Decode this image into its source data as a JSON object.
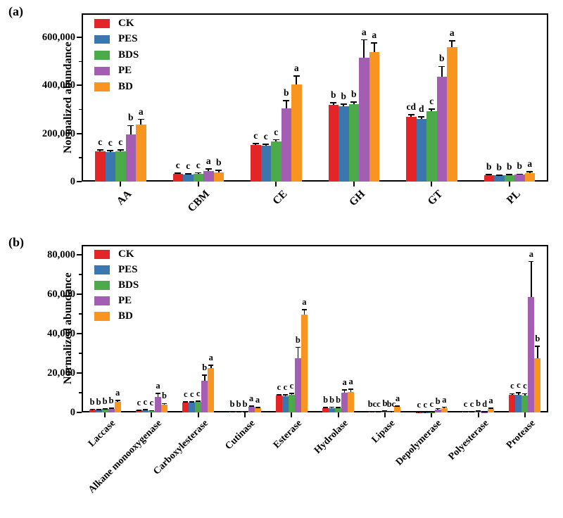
{
  "figure": {
    "background": "#ffffff"
  },
  "series_colors": {
    "CK": "#e42527",
    "PES": "#3b76af",
    "BDS": "#4caa4b",
    "PE": "#a35db3",
    "BD": "#f89521"
  },
  "chart_data": [
    {
      "type": "bar",
      "panel_label": "(a)",
      "title": "",
      "xlabel": "",
      "ylabel": "Normalized abundance",
      "grid": false,
      "legend_position": "inside top-left",
      "legend": [
        "CK",
        "PES",
        "BDS",
        "PE",
        "BD"
      ],
      "categories": [
        "AA",
        "CBM",
        "CE",
        "GH",
        "GT",
        "PL"
      ],
      "ylim": [
        0,
        700000
      ],
      "yticks": [
        0,
        200000,
        400000,
        600000
      ],
      "ytick_labels": [
        "0",
        "200,000",
        "400,000",
        "600,000"
      ],
      "minor_yticks": [
        100000,
        300000,
        500000
      ],
      "series": [
        {
          "name": "CK",
          "color": "#e42527",
          "values": [
            125000,
            31000,
            152000,
            320000,
            270000,
            27000
          ],
          "errors": [
            6000,
            3000,
            7000,
            9000,
            8000,
            2500
          ],
          "sig_letters": [
            "c",
            "c",
            "c",
            "b",
            "cd",
            "b"
          ]
        },
        {
          "name": "PES",
          "color": "#3b76af",
          "values": [
            124000,
            30000,
            148000,
            314000,
            262000,
            25000
          ],
          "errors": [
            6000,
            3000,
            8000,
            8000,
            7000,
            2500
          ],
          "sig_letters": [
            "c",
            "c",
            "c",
            "b",
            "d",
            "b"
          ]
        },
        {
          "name": "BDS",
          "color": "#4caa4b",
          "values": [
            125000,
            33000,
            166000,
            323000,
            292000,
            27000
          ],
          "errors": [
            6000,
            3500,
            8000,
            9000,
            9000,
            2500
          ],
          "sig_letters": [
            "c",
            "c",
            "c",
            "b",
            "c",
            "b"
          ]
        },
        {
          "name": "PE",
          "color": "#a35db3",
          "values": [
            195000,
            45000,
            305000,
            515000,
            437000,
            28000
          ],
          "errors": [
            38000,
            8000,
            32000,
            75000,
            42000,
            3000
          ],
          "sig_letters": [
            "b",
            "a",
            "b",
            "a",
            "b",
            "b"
          ]
        },
        {
          "name": "BD",
          "color": "#f89521",
          "values": [
            237000,
            39000,
            404000,
            540000,
            560000,
            36000
          ],
          "errors": [
            22000,
            7000,
            35000,
            36000,
            26000,
            4000
          ],
          "sig_letters": [
            "a",
            "b",
            "a",
            "a",
            "a",
            "a"
          ]
        }
      ]
    },
    {
      "type": "bar",
      "panel_label": "(b)",
      "title": "",
      "xlabel": "",
      "ylabel": "Normalized abundance",
      "grid": false,
      "legend_position": "inside top-left",
      "legend": [
        "CK",
        "PES",
        "BDS",
        "PE",
        "BD"
      ],
      "categories": [
        "Laccase",
        "Alkane monooxygenase",
        "Carboxylesterase",
        "Cutinase",
        "Esterase",
        "Hydrolase",
        "Lipase",
        "Depolymerase",
        "Polyesterase",
        "Protease"
      ],
      "ylim": [
        0,
        85000
      ],
      "yticks": [
        0,
        20000,
        40000,
        60000,
        80000
      ],
      "ytick_labels": [
        "0",
        "20,000",
        "40,000",
        "60,000",
        "80,000"
      ],
      "minor_yticks": [
        10000,
        30000,
        50000,
        70000
      ],
      "series": [
        {
          "name": "CK",
          "color": "#e42527",
          "values": [
            1400,
            900,
            4900,
            200,
            8400,
            2200,
            300,
            120,
            220,
            8800
          ],
          "errors": [
            180,
            150,
            400,
            60,
            600,
            350,
            90,
            40,
            60,
            700
          ],
          "sig_letters": [
            "b",
            "c",
            "c",
            "b",
            "c",
            "b",
            "bc",
            "c",
            "c",
            "c"
          ]
        },
        {
          "name": "PES",
          "color": "#3b76af",
          "values": [
            1300,
            1100,
            5000,
            200,
            8300,
            2300,
            260,
            120,
            260,
            9100
          ],
          "errors": [
            160,
            220,
            420,
            60,
            550,
            350,
            70,
            40,
            70,
            800
          ],
          "sig_letters": [
            "b",
            "c",
            "c",
            "b",
            "c",
            "b",
            "c",
            "c",
            "c",
            "c"
          ]
        },
        {
          "name": "BDS",
          "color": "#4caa4b",
          "values": [
            1700,
            750,
            5300,
            260,
            9000,
            2100,
            480,
            170,
            620,
            8700
          ],
          "errors": [
            220,
            160,
            500,
            70,
            650,
            320,
            110,
            50,
            120,
            800
          ],
          "sig_letters": [
            "b",
            "c",
            "c",
            "b",
            "c",
            "b",
            "b",
            "c",
            "b",
            "c"
          ]
        },
        {
          "name": "PE",
          "color": "#a35db3",
          "values": [
            1800,
            7800,
            16200,
            2700,
            27400,
            9900,
            380,
            1600,
            150,
            58400
          ],
          "errors": [
            280,
            1900,
            2600,
            550,
            5600,
            1500,
            120,
            350,
            60,
            18200
          ],
          "sig_letters": [
            "b",
            "a",
            "b",
            "a",
            "b",
            "a",
            "bc",
            "b",
            "d",
            "a"
          ]
        },
        {
          "name": "BD",
          "color": "#f89521",
          "values": [
            5400,
            3900,
            22500,
            2100,
            49500,
            10400,
            2900,
            2300,
            1900,
            27400
          ],
          "errors": [
            650,
            600,
            1300,
            400,
            2600,
            1400,
            450,
            350,
            350,
            6200
          ],
          "sig_letters": [
            "a",
            "b",
            "a",
            "a",
            "a",
            "a",
            "a",
            "a",
            "a",
            "b"
          ]
        }
      ]
    }
  ]
}
